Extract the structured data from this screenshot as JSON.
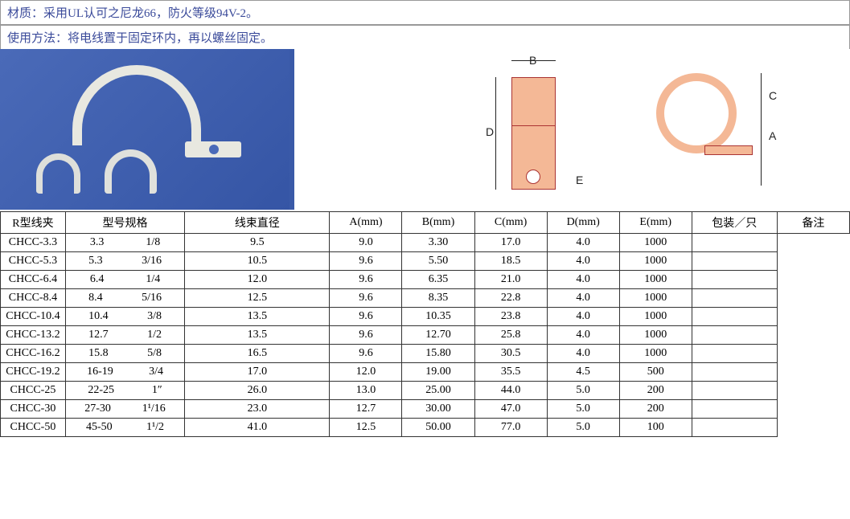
{
  "header": {
    "material": "材质：采用UL认可之尼龙66，防火等级94V-2。",
    "usage": "使用方法：将电线置于固定环内，再以螺丝固定。"
  },
  "diagram_labels": {
    "B": "B",
    "D": "D",
    "E": "E",
    "C": "C",
    "A": "A"
  },
  "category_label": "R型线夹",
  "table": {
    "headers": [
      "型号规格",
      "线束直径",
      "A(mm)",
      "B(mm)",
      "C(mm)",
      "D(mm)",
      "E(mm)",
      "包装／只",
      "备注"
    ],
    "rows": [
      {
        "model": "CHCC-3.3",
        "d1": "3.3",
        "d2": "1/8",
        "A": "9.5",
        "B": "9.0",
        "C": "3.30",
        "D": "17.0",
        "E": "4.0",
        "pack": "1000",
        "note": ""
      },
      {
        "model": "CHCC-5.3",
        "d1": "5.3",
        "d2": "3/16",
        "A": "10.5",
        "B": "9.6",
        "C": "5.50",
        "D": "18.5",
        "E": "4.0",
        "pack": "1000",
        "note": ""
      },
      {
        "model": "CHCC-6.4",
        "d1": "6.4",
        "d2": "1/4",
        "A": "12.0",
        "B": "9.6",
        "C": "6.35",
        "D": "21.0",
        "E": "4.0",
        "pack": "1000",
        "note": ""
      },
      {
        "model": "CHCC-8.4",
        "d1": "8.4",
        "d2": "5/16",
        "A": "12.5",
        "B": "9.6",
        "C": "8.35",
        "D": "22.8",
        "E": "4.0",
        "pack": "1000",
        "note": ""
      },
      {
        "model": "CHCC-10.4",
        "d1": "10.4",
        "d2": "3/8",
        "A": "13.5",
        "B": "9.6",
        "C": "10.35",
        "D": "23.8",
        "E": "4.0",
        "pack": "1000",
        "note": ""
      },
      {
        "model": "CHCC-13.2",
        "d1": "12.7",
        "d2": "1/2",
        "A": "13.5",
        "B": "9.6",
        "C": "12.70",
        "D": "25.8",
        "E": "4.0",
        "pack": "1000",
        "note": ""
      },
      {
        "model": "CHCC-16.2",
        "d1": "15.8",
        "d2": "5/8",
        "A": "16.5",
        "B": "9.6",
        "C": "15.80",
        "D": "30.5",
        "E": "4.0",
        "pack": "1000",
        "note": ""
      },
      {
        "model": "CHCC-19.2",
        "d1": "16-19",
        "d2": "3/4",
        "A": "17.0",
        "B": "12.0",
        "C": "19.00",
        "D": "35.5",
        "E": "4.5",
        "pack": "500",
        "note": ""
      },
      {
        "model": "CHCC-25",
        "d1": "22-25",
        "d2": "1″",
        "A": "26.0",
        "B": "13.0",
        "C": "25.00",
        "D": "44.0",
        "E": "5.0",
        "pack": "200",
        "note": ""
      },
      {
        "model": "CHCC-30",
        "d1": "27-30",
        "d2": "1¹/16",
        "A": "23.0",
        "B": "12.7",
        "C": "30.00",
        "D": "47.0",
        "E": "5.0",
        "pack": "200",
        "note": ""
      },
      {
        "model": "CHCC-50",
        "d1": "45-50",
        "d2": "1¹/2",
        "A": "41.0",
        "B": "12.5",
        "C": "50.00",
        "D": "77.0",
        "E": "5.0",
        "pack": "100",
        "note": ""
      }
    ]
  },
  "style": {
    "header_text_color": "#3a4a9a",
    "border_color": "#333333",
    "photo_bg": "#3a5aa8",
    "clamp_color": "#e8e8e0",
    "diagram_fill": "#f4b896",
    "diagram_stroke": "#a33333",
    "font_size_body": 14
  }
}
